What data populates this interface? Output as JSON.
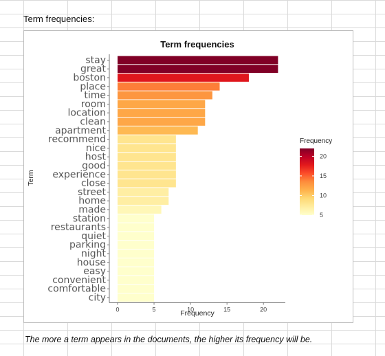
{
  "sheet": {
    "heading": "Term frequencies:",
    "caption": "The more a term appears in the documents, the higher its frequency will be."
  },
  "chart_data": {
    "type": "bar",
    "orientation": "horizontal",
    "title": "Term frequencies",
    "xlabel": "Frequency",
    "ylabel": "Term",
    "categories": [
      "stay",
      "great",
      "boston",
      "place",
      "time",
      "room",
      "location",
      "clean",
      "apartment",
      "recommend",
      "nice",
      "host",
      "good",
      "experience",
      "close",
      "street",
      "home",
      "made",
      "station",
      "restaurants",
      "quiet",
      "parking",
      "night",
      "house",
      "easy",
      "convenient",
      "comfortable",
      "city"
    ],
    "values": [
      22,
      22,
      18,
      14,
      13,
      12,
      12,
      12,
      11,
      8,
      8,
      8,
      8,
      8,
      8,
      7,
      7,
      6,
      5,
      5,
      5,
      5,
      5,
      5,
      5,
      5,
      5,
      5
    ],
    "xlim": [
      0,
      23
    ],
    "xticks": [
      0,
      5,
      10,
      15,
      20
    ],
    "xtick_labels": [
      "0",
      "5",
      "10",
      "15",
      "20"
    ],
    "grid": false,
    "legend": {
      "title": "Frequency",
      "position": "right",
      "range": [
        5,
        22
      ],
      "ticks": [
        5,
        10,
        15,
        20
      ],
      "tick_labels": [
        "5",
        "10",
        "15",
        "20"
      ],
      "colors": [
        "#ffffcc",
        "#ffeda0",
        "#fed976",
        "#feb24c",
        "#fd8d3c",
        "#fc4e2a",
        "#e31a1c",
        "#bd0026",
        "#800026"
      ]
    }
  }
}
